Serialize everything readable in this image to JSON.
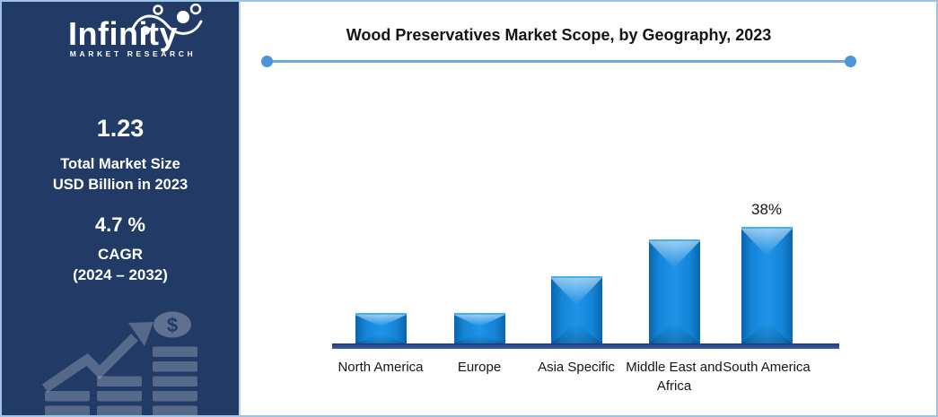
{
  "header": {
    "title": "Wood Preservatives Market Scope, by Geography, 2023"
  },
  "sidebar": {
    "logo": {
      "name": "Infinity",
      "subtitle": "MARKET RESEARCH"
    },
    "market_size": {
      "value": "1.23",
      "label_line1": "Total Market Size",
      "label_line2": "USD Billion in 2023"
    },
    "cagr": {
      "value": "4.7 %",
      "label": "CAGR",
      "period": "(2024 – 2032)"
    },
    "graphic": {
      "dollar_sign": "$"
    }
  },
  "chart_data": {
    "type": "bar",
    "title": "Wood Preservatives Market Scope, by Geography, 2023",
    "categories": [
      "North America",
      "Europe",
      "Asia Specific",
      "Middle East and Africa",
      "South America"
    ],
    "values": [
      10,
      10,
      22,
      34,
      38
    ],
    "unit": "%",
    "data_labels": [
      null,
      null,
      null,
      null,
      "38%"
    ],
    "xlabel": "",
    "ylabel": "",
    "ylim": [
      0,
      40
    ],
    "grid": false,
    "legend": false,
    "bar_color": "#1485D8",
    "axis_color": "#2E4E94"
  },
  "colors": {
    "sidebar_bg": "#223A66",
    "bar_blue": "#1485D8",
    "axis_blue": "#2E4E94",
    "divider_line": "#6FA8DC",
    "divider_dot": "#4D94DB",
    "outer_border": "#9DC3E6",
    "title_text": "#151515"
  }
}
